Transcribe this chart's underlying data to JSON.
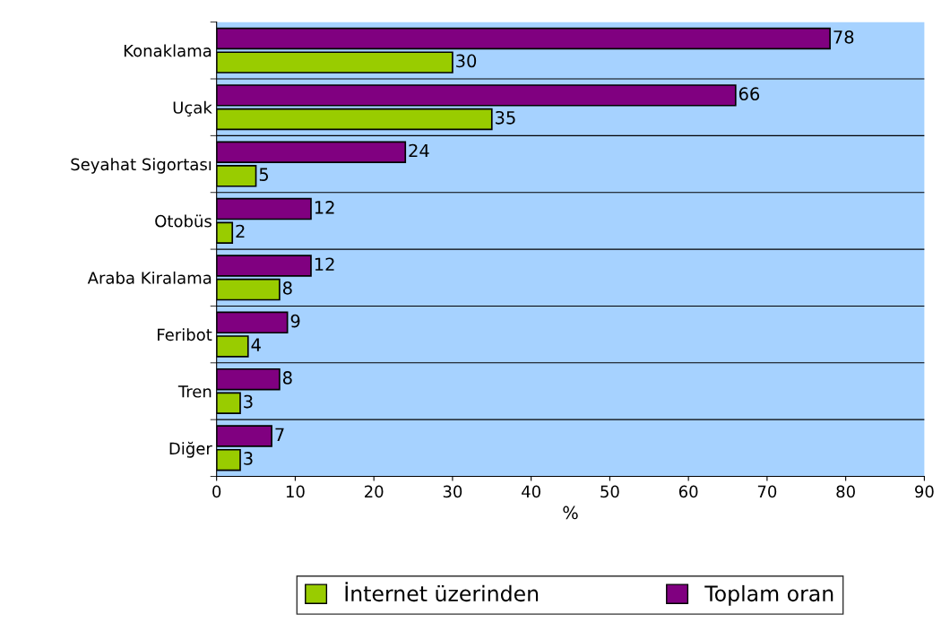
{
  "chart_data": {
    "type": "bar",
    "orientation": "horizontal",
    "xlabel": "%",
    "categories": [
      "Konaklama",
      "Uçak",
      "Seyahat Sigortası",
      "Otobüs",
      "Araba Kiralama",
      "Feribot",
      "Tren",
      "Diğer"
    ],
    "series": [
      {
        "name": "İnternet üzerinden",
        "color": "#99cc00",
        "values": [
          30,
          35,
          5,
          2,
          8,
          4,
          3,
          3
        ]
      },
      {
        "name": "Toplam oran",
        "color": "#800080",
        "values": [
          78,
          66,
          24,
          12,
          12,
          9,
          8,
          7
        ]
      }
    ],
    "xlim": [
      0,
      90
    ],
    "xticks": [
      0,
      10,
      20,
      30,
      40,
      50,
      60,
      70,
      80,
      90
    ],
    "grid": "y",
    "legend": "bottom",
    "data_labels": true
  }
}
